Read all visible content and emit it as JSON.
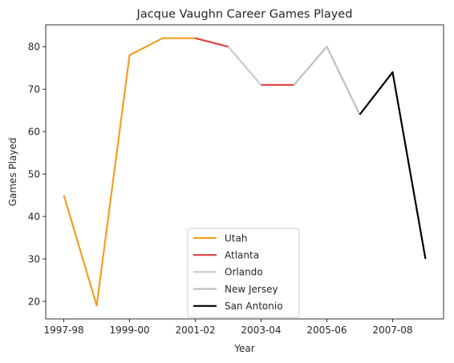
{
  "chart_data": {
    "type": "line",
    "title": "Jacque Vaughn Career Games Played",
    "xlabel": "Year",
    "ylabel": "Games Played",
    "x_tick_labels": [
      "1997-98",
      "1999-00",
      "2001-02",
      "2003-04",
      "2005-06",
      "2007-08"
    ],
    "x_tick_positions": [
      0,
      2,
      4,
      6,
      8,
      10
    ],
    "y_ticks": [
      20,
      30,
      40,
      50,
      60,
      70,
      80
    ],
    "xlim": [
      -0.55,
      11.55
    ],
    "ylim": [
      15.85,
      85.15
    ],
    "grid": false,
    "legend_position": "lower center",
    "series": [
      {
        "name": "Utah",
        "color": "#F49E22",
        "points": [
          [
            0,
            45
          ],
          [
            1,
            19
          ],
          [
            2,
            78
          ],
          [
            3,
            82
          ],
          [
            4,
            82
          ]
        ]
      },
      {
        "name": "Atlanta",
        "color": "#DD4042",
        "points": [
          [
            4,
            82
          ],
          [
            5,
            80
          ]
        ]
      },
      {
        "name": "Orlando",
        "color": "#C4CED4",
        "points": [
          [
            5,
            80
          ],
          [
            6,
            71
          ]
        ]
      },
      {
        "name": "",
        "color": "#DD4042",
        "points": [
          [
            6,
            71
          ],
          [
            7,
            71
          ]
        ]
      },
      {
        "name": "New Jersey",
        "color": "#BFC0BF",
        "points": [
          [
            7,
            71
          ],
          [
            8,
            80
          ],
          [
            9,
            64
          ]
        ]
      },
      {
        "name": "San Antonio",
        "color": "#000000",
        "points": [
          [
            9,
            64
          ],
          [
            10,
            74
          ],
          [
            11,
            30
          ]
        ]
      }
    ]
  }
}
